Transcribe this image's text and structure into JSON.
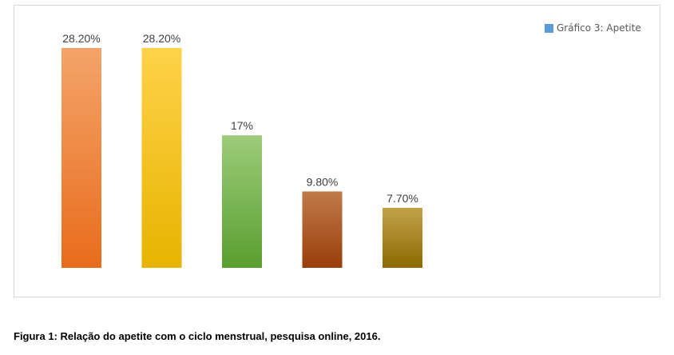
{
  "chart_data": {
    "type": "bar",
    "categories": [
      "",
      "",
      "",
      "",
      ""
    ],
    "values": [
      28.2,
      28.2,
      17,
      9.8,
      7.7
    ],
    "data_labels": [
      "28.20%",
      "28.20%",
      "17%",
      "9.80%",
      "7.70%"
    ],
    "series": [
      {
        "name": "Gráfico 3: Apetite",
        "values": [
          28.2,
          28.2,
          17,
          9.8,
          7.7
        ]
      }
    ],
    "colors": [
      [
        "#f4a46a",
        "#e86c1c"
      ],
      [
        "#ffd24a",
        "#e6b400"
      ],
      [
        "#9ccc7a",
        "#5a9e2f"
      ],
      [
        "#c07a4a",
        "#9a3e0a"
      ],
      [
        "#c2a24a",
        "#8a6a00"
      ]
    ],
    "ylim": [
      0,
      28.2
    ],
    "grid": false,
    "legend_position": "top-right",
    "title": "",
    "xlabel": "",
    "ylabel": ""
  },
  "legend": {
    "label": "Gráfico 3: Apetite",
    "color": "#5b9bd5"
  },
  "caption": "Figura 1: Relação do apetite com o ciclo menstrual, pesquisa online, 2016."
}
